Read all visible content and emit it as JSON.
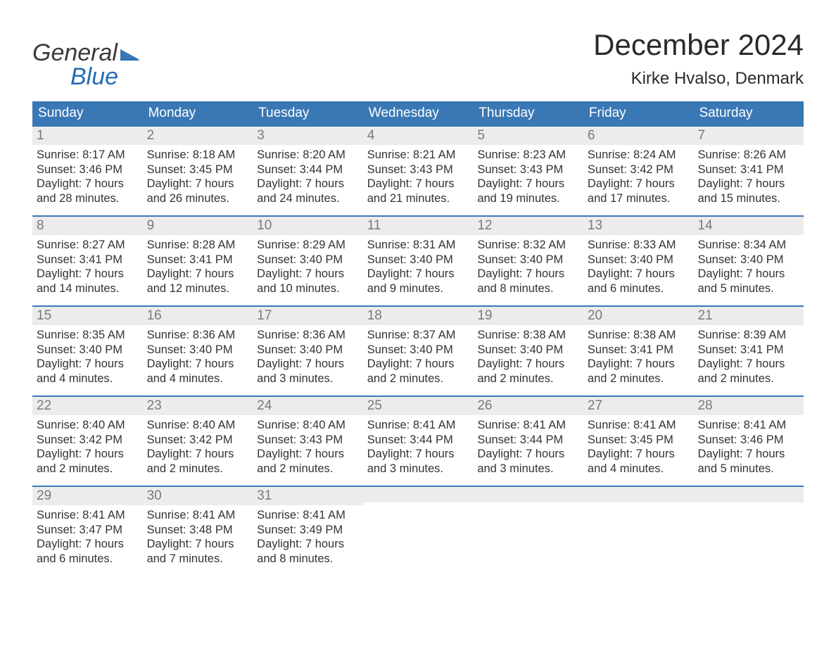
{
  "colors": {
    "header_bg": "#3a78b5",
    "header_text": "#ffffff",
    "daynum_bg": "#ececec",
    "daynum_text": "#7a7a7a",
    "body_text": "#333333",
    "accent": "#246cb4",
    "week_border": "#3a78b5"
  },
  "typography": {
    "month_title_size_pt": 32,
    "location_size_pt": 18,
    "dow_size_pt": 14,
    "daynum_size_pt": 14,
    "body_size_pt": 12.5,
    "logo_size_pt": 26
  },
  "logo": {
    "line1": "General",
    "line2": "Blue"
  },
  "title": "December 2024",
  "location": "Kirke Hvalso, Denmark",
  "days_of_week": [
    "Sunday",
    "Monday",
    "Tuesday",
    "Wednesday",
    "Thursday",
    "Friday",
    "Saturday"
  ],
  "weeks": [
    [
      {
        "num": "1",
        "sunrise": "Sunrise: 8:17 AM",
        "sunset": "Sunset: 3:46 PM",
        "dl1": "Daylight: 7 hours",
        "dl2": "and 28 minutes."
      },
      {
        "num": "2",
        "sunrise": "Sunrise: 8:18 AM",
        "sunset": "Sunset: 3:45 PM",
        "dl1": "Daylight: 7 hours",
        "dl2": "and 26 minutes."
      },
      {
        "num": "3",
        "sunrise": "Sunrise: 8:20 AM",
        "sunset": "Sunset: 3:44 PM",
        "dl1": "Daylight: 7 hours",
        "dl2": "and 24 minutes."
      },
      {
        "num": "4",
        "sunrise": "Sunrise: 8:21 AM",
        "sunset": "Sunset: 3:43 PM",
        "dl1": "Daylight: 7 hours",
        "dl2": "and 21 minutes."
      },
      {
        "num": "5",
        "sunrise": "Sunrise: 8:23 AM",
        "sunset": "Sunset: 3:43 PM",
        "dl1": "Daylight: 7 hours",
        "dl2": "and 19 minutes."
      },
      {
        "num": "6",
        "sunrise": "Sunrise: 8:24 AM",
        "sunset": "Sunset: 3:42 PM",
        "dl1": "Daylight: 7 hours",
        "dl2": "and 17 minutes."
      },
      {
        "num": "7",
        "sunrise": "Sunrise: 8:26 AM",
        "sunset": "Sunset: 3:41 PM",
        "dl1": "Daylight: 7 hours",
        "dl2": "and 15 minutes."
      }
    ],
    [
      {
        "num": "8",
        "sunrise": "Sunrise: 8:27 AM",
        "sunset": "Sunset: 3:41 PM",
        "dl1": "Daylight: 7 hours",
        "dl2": "and 14 minutes."
      },
      {
        "num": "9",
        "sunrise": "Sunrise: 8:28 AM",
        "sunset": "Sunset: 3:41 PM",
        "dl1": "Daylight: 7 hours",
        "dl2": "and 12 minutes."
      },
      {
        "num": "10",
        "sunrise": "Sunrise: 8:29 AM",
        "sunset": "Sunset: 3:40 PM",
        "dl1": "Daylight: 7 hours",
        "dl2": "and 10 minutes."
      },
      {
        "num": "11",
        "sunrise": "Sunrise: 8:31 AM",
        "sunset": "Sunset: 3:40 PM",
        "dl1": "Daylight: 7 hours",
        "dl2": "and 9 minutes."
      },
      {
        "num": "12",
        "sunrise": "Sunrise: 8:32 AM",
        "sunset": "Sunset: 3:40 PM",
        "dl1": "Daylight: 7 hours",
        "dl2": "and 8 minutes."
      },
      {
        "num": "13",
        "sunrise": "Sunrise: 8:33 AM",
        "sunset": "Sunset: 3:40 PM",
        "dl1": "Daylight: 7 hours",
        "dl2": "and 6 minutes."
      },
      {
        "num": "14",
        "sunrise": "Sunrise: 8:34 AM",
        "sunset": "Sunset: 3:40 PM",
        "dl1": "Daylight: 7 hours",
        "dl2": "and 5 minutes."
      }
    ],
    [
      {
        "num": "15",
        "sunrise": "Sunrise: 8:35 AM",
        "sunset": "Sunset: 3:40 PM",
        "dl1": "Daylight: 7 hours",
        "dl2": "and 4 minutes."
      },
      {
        "num": "16",
        "sunrise": "Sunrise: 8:36 AM",
        "sunset": "Sunset: 3:40 PM",
        "dl1": "Daylight: 7 hours",
        "dl2": "and 4 minutes."
      },
      {
        "num": "17",
        "sunrise": "Sunrise: 8:36 AM",
        "sunset": "Sunset: 3:40 PM",
        "dl1": "Daylight: 7 hours",
        "dl2": "and 3 minutes."
      },
      {
        "num": "18",
        "sunrise": "Sunrise: 8:37 AM",
        "sunset": "Sunset: 3:40 PM",
        "dl1": "Daylight: 7 hours",
        "dl2": "and 2 minutes."
      },
      {
        "num": "19",
        "sunrise": "Sunrise: 8:38 AM",
        "sunset": "Sunset: 3:40 PM",
        "dl1": "Daylight: 7 hours",
        "dl2": "and 2 minutes."
      },
      {
        "num": "20",
        "sunrise": "Sunrise: 8:38 AM",
        "sunset": "Sunset: 3:41 PM",
        "dl1": "Daylight: 7 hours",
        "dl2": "and 2 minutes."
      },
      {
        "num": "21",
        "sunrise": "Sunrise: 8:39 AM",
        "sunset": "Sunset: 3:41 PM",
        "dl1": "Daylight: 7 hours",
        "dl2": "and 2 minutes."
      }
    ],
    [
      {
        "num": "22",
        "sunrise": "Sunrise: 8:40 AM",
        "sunset": "Sunset: 3:42 PM",
        "dl1": "Daylight: 7 hours",
        "dl2": "and 2 minutes."
      },
      {
        "num": "23",
        "sunrise": "Sunrise: 8:40 AM",
        "sunset": "Sunset: 3:42 PM",
        "dl1": "Daylight: 7 hours",
        "dl2": "and 2 minutes."
      },
      {
        "num": "24",
        "sunrise": "Sunrise: 8:40 AM",
        "sunset": "Sunset: 3:43 PM",
        "dl1": "Daylight: 7 hours",
        "dl2": "and 2 minutes."
      },
      {
        "num": "25",
        "sunrise": "Sunrise: 8:41 AM",
        "sunset": "Sunset: 3:44 PM",
        "dl1": "Daylight: 7 hours",
        "dl2": "and 3 minutes."
      },
      {
        "num": "26",
        "sunrise": "Sunrise: 8:41 AM",
        "sunset": "Sunset: 3:44 PM",
        "dl1": "Daylight: 7 hours",
        "dl2": "and 3 minutes."
      },
      {
        "num": "27",
        "sunrise": "Sunrise: 8:41 AM",
        "sunset": "Sunset: 3:45 PM",
        "dl1": "Daylight: 7 hours",
        "dl2": "and 4 minutes."
      },
      {
        "num": "28",
        "sunrise": "Sunrise: 8:41 AM",
        "sunset": "Sunset: 3:46 PM",
        "dl1": "Daylight: 7 hours",
        "dl2": "and 5 minutes."
      }
    ],
    [
      {
        "num": "29",
        "sunrise": "Sunrise: 8:41 AM",
        "sunset": "Sunset: 3:47 PM",
        "dl1": "Daylight: 7 hours",
        "dl2": "and 6 minutes."
      },
      {
        "num": "30",
        "sunrise": "Sunrise: 8:41 AM",
        "sunset": "Sunset: 3:48 PM",
        "dl1": "Daylight: 7 hours",
        "dl2": "and 7 minutes."
      },
      {
        "num": "31",
        "sunrise": "Sunrise: 8:41 AM",
        "sunset": "Sunset: 3:49 PM",
        "dl1": "Daylight: 7 hours",
        "dl2": "and 8 minutes."
      },
      null,
      null,
      null,
      null
    ]
  ]
}
